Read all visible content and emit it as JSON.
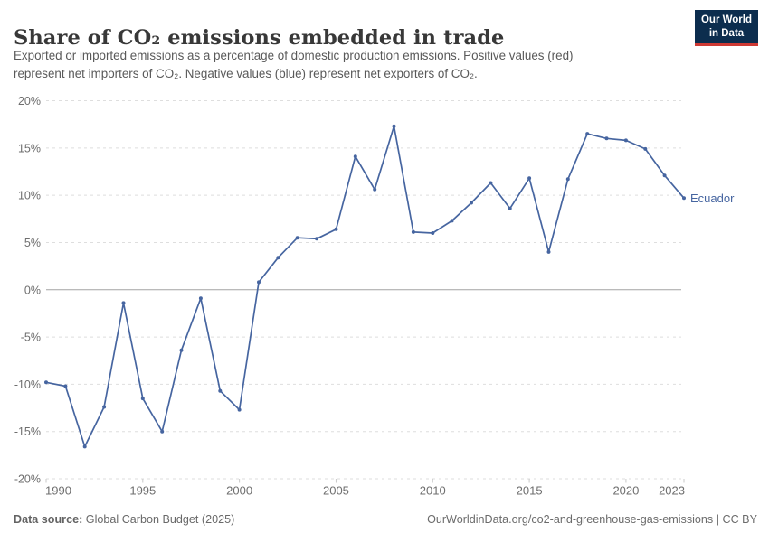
{
  "header": {
    "title": "Share of CO₂ emissions embedded in trade",
    "subtitle_lines": [
      "Exported or imported emissions as a percentage of domestic production emissions. Positive values (red)",
      "represent net importers of CO₂. Negative values (blue) represent net exporters of CO₂."
    ],
    "logo": {
      "line1": "Our World",
      "line2": "in Data",
      "bg_color": "#0c2d4e",
      "accent_color": "#ce3934"
    }
  },
  "chart_data": {
    "type": "line",
    "title": "Share of CO₂ emissions embedded in trade",
    "xlabel": "",
    "ylabel": "",
    "xlim": [
      1990,
      2023
    ],
    "ylim": [
      -20,
      20
    ],
    "x_ticks": [
      1990,
      1995,
      2000,
      2005,
      2010,
      2015,
      2020,
      2023
    ],
    "y_ticks": [
      20,
      15,
      10,
      5,
      0,
      -5,
      -10,
      -15,
      -20
    ],
    "y_tick_suffix": "%",
    "grid": "horizontal dashed, solid zero line",
    "legend_position": "end-of-line label",
    "series": [
      {
        "name": "Ecuador",
        "color": "#4665a0",
        "x": [
          1990,
          1991,
          1992,
          1993,
          1994,
          1995,
          1996,
          1997,
          1998,
          1999,
          2000,
          2001,
          2002,
          2003,
          2004,
          2005,
          2006,
          2007,
          2008,
          2009,
          2010,
          2011,
          2012,
          2013,
          2014,
          2015,
          2016,
          2017,
          2018,
          2019,
          2020,
          2021,
          2022,
          2023
        ],
        "values": [
          -9.8,
          -10.2,
          -16.6,
          -12.4,
          -1.4,
          -11.5,
          -15.0,
          -6.4,
          -0.9,
          -10.7,
          -12.7,
          0.8,
          3.4,
          5.5,
          5.4,
          6.4,
          14.1,
          10.6,
          17.3,
          6.1,
          6.0,
          7.3,
          9.2,
          11.3,
          8.6,
          11.8,
          4.0,
          11.7,
          16.5,
          16.0,
          15.8,
          14.9,
          12.1,
          9.7
        ]
      }
    ],
    "colors": {
      "gridline": "#dedede",
      "zero_line": "#a3a3a3",
      "tick_mark": "#c9c9c9",
      "axis_label": "#6e6e6e"
    }
  },
  "footer": {
    "datasource_label": "Data source:",
    "datasource_value": " Global Carbon Budget (2025)",
    "attribution": "OurWorldinData.org/co2-and-greenhouse-gas-emissions | CC BY"
  }
}
